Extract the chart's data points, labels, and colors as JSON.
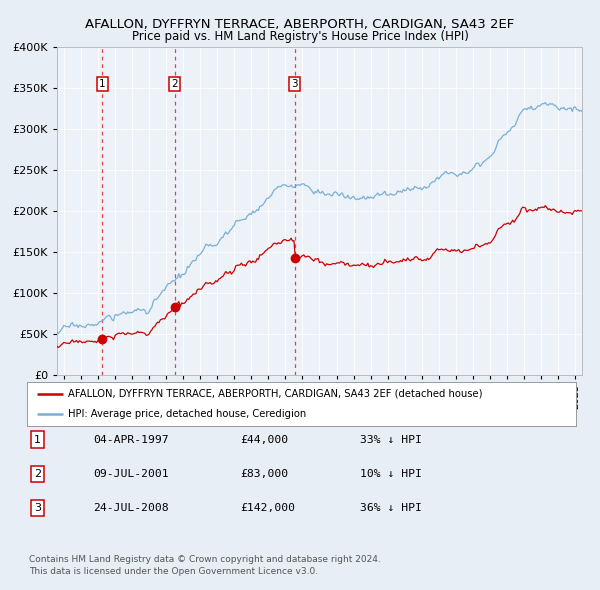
{
  "title": "AFALLON, DYFFRYN TERRACE, ABERPORTH, CARDIGAN, SA43 2EF",
  "subtitle": "Price paid vs. HM Land Registry's House Price Index (HPI)",
  "legend_house": "AFALLON, DYFFRYN TERRACE, ABERPORTH, CARDIGAN, SA43 2EF (detached house)",
  "legend_hpi": "HPI: Average price, detached house, Ceredigion",
  "transactions": [
    {
      "num": 1,
      "date": "04-APR-1997",
      "price": 44000,
      "pct": "33%",
      "dir": "↓",
      "year_x": 1997.25
    },
    {
      "num": 2,
      "date": "09-JUL-2001",
      "price": 83000,
      "pct": "10%",
      "dir": "↓",
      "year_x": 2001.5
    },
    {
      "num": 3,
      "date": "24-JUL-2008",
      "price": 142000,
      "pct": "36%",
      "dir": "↓",
      "year_x": 2008.54
    }
  ],
  "footer1": "Contains HM Land Registry data © Crown copyright and database right 2024.",
  "footer2": "This data is licensed under the Open Government Licence v3.0.",
  "house_color": "#cc0000",
  "hpi_color": "#7aafd4",
  "vline_color": "#dd3333",
  "bg_color": "#e8eef5",
  "plot_bg": "#edf2f8",
  "ylim": [
    0,
    400000
  ],
  "xlim_start": 1994.6,
  "xlim_end": 2025.4
}
